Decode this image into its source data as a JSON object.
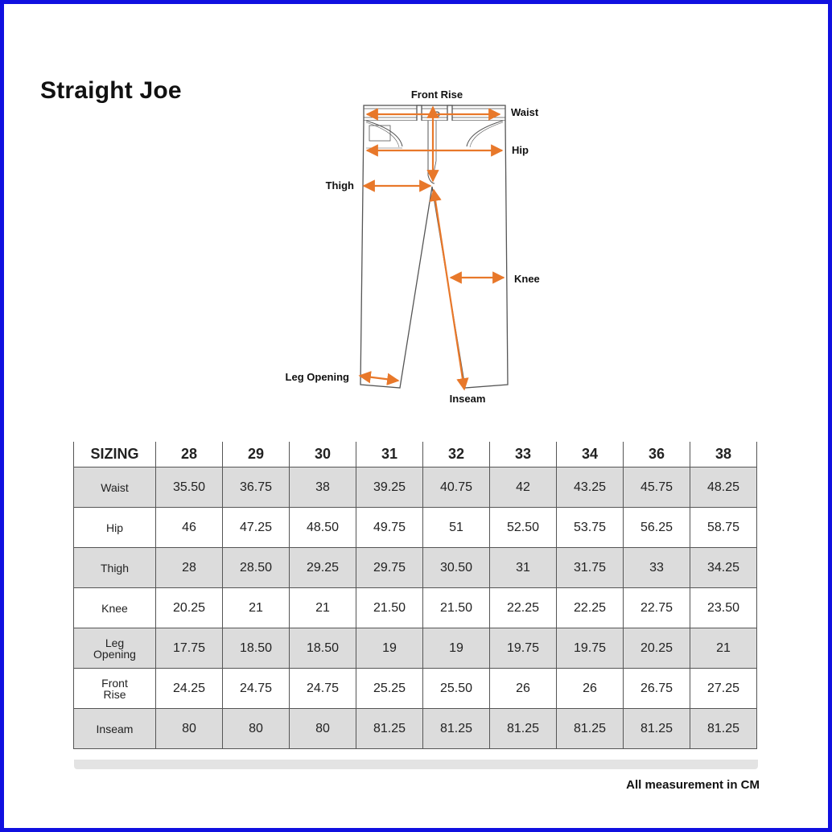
{
  "title": "Straight Joe",
  "diagram": {
    "labels": {
      "front_rise": "Front Rise",
      "waist": "Waist",
      "hip": "Hip",
      "thigh": "Thigh",
      "knee": "Knee",
      "leg_opening": "Leg Opening",
      "inseam": "Inseam"
    },
    "arrow_color": "#e8782a",
    "outline_color": "#555555"
  },
  "table": {
    "header": [
      "SIZING",
      "28",
      "29",
      "30",
      "31",
      "32",
      "33",
      "34",
      "36",
      "38"
    ],
    "rows": [
      {
        "label": "Waist",
        "values": [
          "35.50",
          "36.75",
          "38",
          "39.25",
          "40.75",
          "42",
          "43.25",
          "45.75",
          "48.25"
        ]
      },
      {
        "label": "Hip",
        "values": [
          "46",
          "47.25",
          "48.50",
          "49.75",
          "51",
          "52.50",
          "53.75",
          "56.25",
          "58.75"
        ]
      },
      {
        "label": "Thigh",
        "values": [
          "28",
          "28.50",
          "29.25",
          "29.75",
          "30.50",
          "31",
          "31.75",
          "33",
          "34.25"
        ]
      },
      {
        "label": "Knee",
        "values": [
          "20.25",
          "21",
          "21",
          "21.50",
          "21.50",
          "22.25",
          "22.25",
          "22.75",
          "23.50"
        ]
      },
      {
        "label": "Leg\nOpening",
        "values": [
          "17.75",
          "18.50",
          "18.50",
          "19",
          "19",
          "19.75",
          "19.75",
          "20.25",
          "21"
        ]
      },
      {
        "label": "Front\nRise",
        "values": [
          "24.25",
          "24.75",
          "24.75",
          "25.25",
          "25.50",
          "26",
          "26",
          "26.75",
          "27.25"
        ]
      },
      {
        "label": "Inseam",
        "values": [
          "80",
          "80",
          "80",
          "81.25",
          "81.25",
          "81.25",
          "81.25",
          "81.25",
          "81.25"
        ]
      }
    ],
    "shade_color": "#dcdcdc"
  },
  "footnote": "All measurement in CM",
  "frame_color": "#1010e0"
}
